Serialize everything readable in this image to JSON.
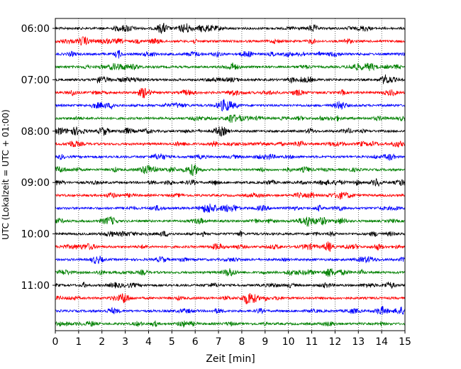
{
  "chart_data": {
    "type": "line",
    "title": "",
    "xlabel": "Zeit  [min]",
    "ylabel": "UTC (Lokalzeit = UTC + 01:00)",
    "xlim": [
      0,
      15
    ],
    "x_ticks": [
      0,
      1,
      2,
      3,
      4,
      5,
      6,
      7,
      8,
      9,
      10,
      11,
      12,
      13,
      14,
      15
    ],
    "x_tick_labels": [
      "0",
      "1",
      "2",
      "3",
      "4",
      "5",
      "6",
      "7",
      "8",
      "9",
      "10",
      "11",
      "12",
      "13",
      "14",
      "15"
    ],
    "y_tick_labels": [
      "06:00",
      "07:00",
      "08:00",
      "09:00",
      "10:00",
      "11:00"
    ],
    "grid": "vertical dotted lines at each minute",
    "color_cycle": [
      "#000000",
      "#ff0000",
      "#0000ff",
      "#008000"
    ],
    "series": [
      {
        "start": "06:00",
        "color": "#000000"
      },
      {
        "start": "06:15",
        "color": "#ff0000"
      },
      {
        "start": "06:30",
        "color": "#0000ff"
      },
      {
        "start": "06:45",
        "color": "#008000"
      },
      {
        "start": "07:00",
        "color": "#000000"
      },
      {
        "start": "07:15",
        "color": "#ff0000"
      },
      {
        "start": "07:30",
        "color": "#0000ff"
      },
      {
        "start": "07:45",
        "color": "#008000"
      },
      {
        "start": "08:00",
        "color": "#000000"
      },
      {
        "start": "08:15",
        "color": "#ff0000"
      },
      {
        "start": "08:30",
        "color": "#0000ff"
      },
      {
        "start": "08:45",
        "color": "#008000"
      },
      {
        "start": "09:00",
        "color": "#000000"
      },
      {
        "start": "09:15",
        "color": "#ff0000"
      },
      {
        "start": "09:30",
        "color": "#0000ff"
      },
      {
        "start": "09:45",
        "color": "#008000"
      },
      {
        "start": "10:00",
        "color": "#000000"
      },
      {
        "start": "10:15",
        "color": "#ff0000"
      },
      {
        "start": "10:30",
        "color": "#0000ff"
      },
      {
        "start": "10:45",
        "color": "#008000"
      },
      {
        "start": "11:00",
        "color": "#000000"
      },
      {
        "start": "11:15",
        "color": "#ff0000"
      },
      {
        "start": "11:30",
        "color": "#0000ff"
      },
      {
        "start": "11:45",
        "color": "#008000"
      }
    ]
  }
}
